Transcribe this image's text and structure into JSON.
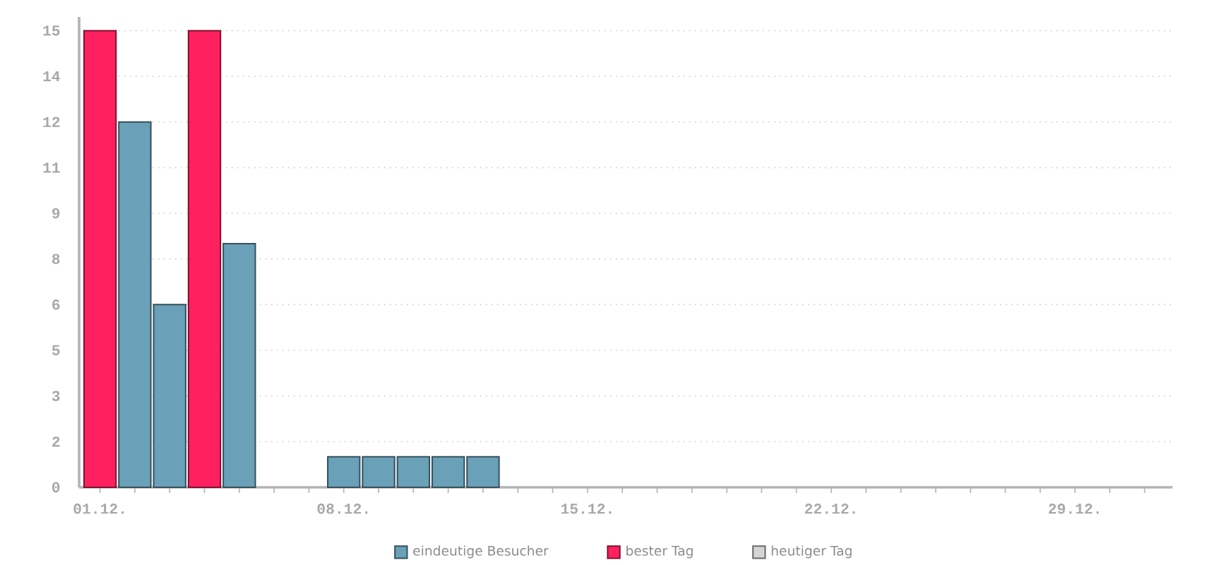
{
  "chart_data": {
    "type": "bar",
    "categories": [
      "01.12.",
      null,
      null,
      null,
      null,
      null,
      null,
      "08.12.",
      null,
      null,
      null,
      null,
      null,
      null,
      "15.12.",
      null,
      null,
      null,
      null,
      null,
      null,
      "22.12.",
      null,
      null,
      null,
      null,
      null,
      null,
      "29.12.",
      null,
      null
    ],
    "series": [
      {
        "name": "eindeutige Besucher",
        "color": "#6aa0b8",
        "values": [
          null,
          12,
          6,
          null,
          8,
          null,
          null,
          1,
          1,
          1,
          1,
          1,
          null,
          null,
          null,
          null,
          null,
          null,
          null,
          null,
          null,
          null,
          null,
          null,
          null,
          null,
          null,
          null,
          null,
          null,
          null
        ]
      },
      {
        "name": "bester Tag",
        "color": "#ff2060",
        "values": [
          15,
          null,
          null,
          15,
          null,
          null,
          null,
          null,
          null,
          null,
          null,
          null,
          null,
          null,
          null,
          null,
          null,
          null,
          null,
          null,
          null,
          null,
          null,
          null,
          null,
          null,
          null,
          null,
          null,
          null,
          null
        ]
      },
      {
        "name": "heutiger Tag",
        "color": "#d4d4d4",
        "values": [
          null,
          null,
          null,
          null,
          null,
          null,
          null,
          null,
          null,
          null,
          null,
          null,
          null,
          null,
          null,
          null,
          null,
          null,
          null,
          null,
          null,
          null,
          null,
          null,
          null,
          null,
          null,
          null,
          null,
          null,
          null
        ]
      }
    ],
    "ylim": [
      0,
      15.45
    ],
    "yticks": [
      0,
      {
        "value": 1.5,
        "label": "2"
      },
      3,
      {
        "value": 4.5,
        "label": "5"
      },
      6,
      {
        "value": 7.5,
        "label": "8"
      },
      9,
      {
        "value": 10.5,
        "label": "11"
      },
      12,
      {
        "value": 13.5,
        "label": "14"
      },
      15
    ],
    "grid": "y",
    "legend": "bottom"
  }
}
